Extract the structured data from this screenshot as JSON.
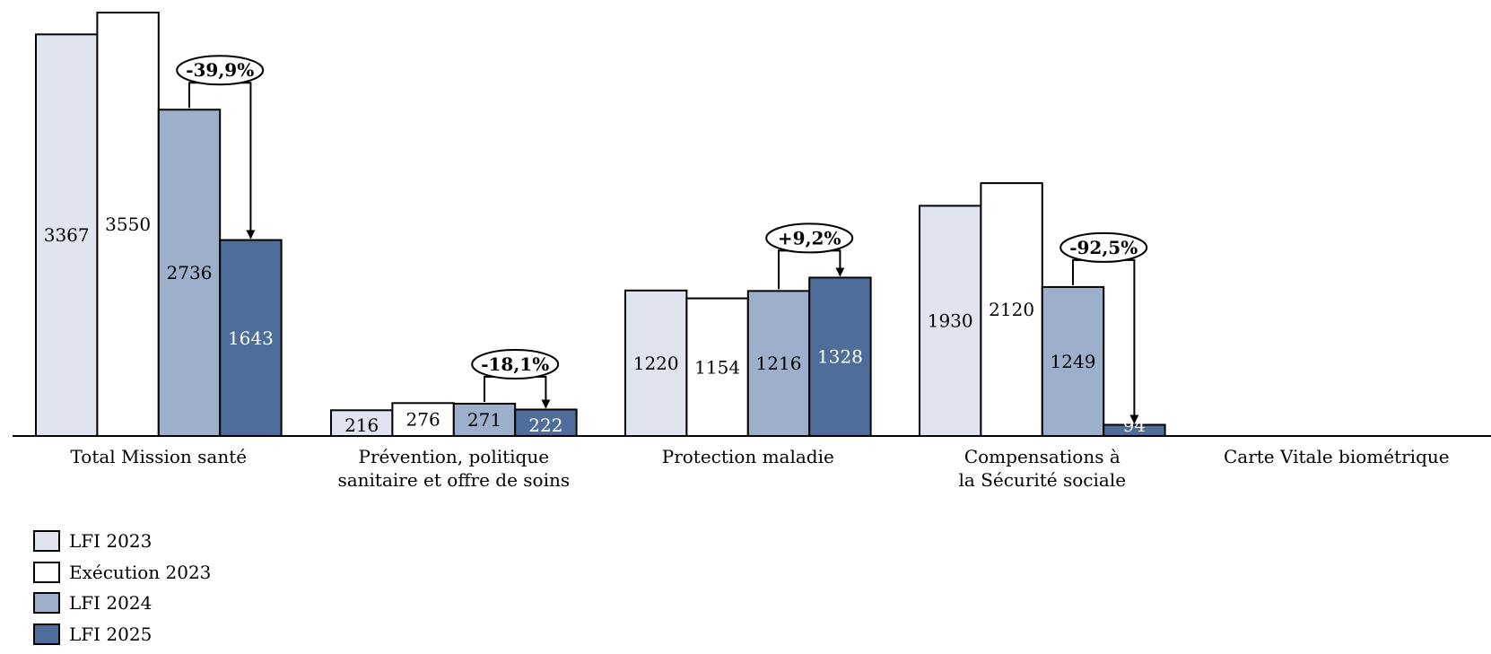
{
  "chart_data": {
    "type": "bar",
    "categories": [
      [
        "Total Mission santé"
      ],
      [
        "Prévention, politique",
        "sanitaire et offre de soins"
      ],
      [
        "Protection maladie"
      ],
      [
        "Compensations à",
        "la Sécurité sociale"
      ],
      [
        "Carte Vitale biométrique"
      ]
    ],
    "series": [
      {
        "name": "LFI 2023",
        "color": "#dfe4ee",
        "label_color": "#000000",
        "values": [
          3367,
          216,
          1220,
          1930,
          null
        ]
      },
      {
        "name": "Exécution 2023",
        "color": "#ffffff",
        "label_color": "#000000",
        "values": [
          3550,
          276,
          1154,
          2120,
          null
        ]
      },
      {
        "name": "LFI 2024",
        "color": "#9eafcb",
        "label_color": "#000000",
        "values": [
          2736,
          271,
          1216,
          1249,
          null
        ]
      },
      {
        "name": "LFI 2025",
        "color": "#4f6d9a",
        "label_color": "#ffffff",
        "values": [
          1643,
          222,
          1328,
          94,
          null
        ]
      }
    ],
    "annotations": [
      {
        "category_index": 0,
        "from_series": 2,
        "to_series": 3,
        "text": "-39,9%"
      },
      {
        "category_index": 1,
        "from_series": 2,
        "to_series": 3,
        "text": "-18,1%"
      },
      {
        "category_index": 2,
        "from_series": 2,
        "to_series": 3,
        "text": "+9,2%"
      },
      {
        "category_index": 3,
        "from_series": 2,
        "to_series": 3,
        "text": "-92,5%"
      }
    ],
    "ylim": [
      0,
      3550
    ],
    "grid": false,
    "legend_position": "bottom-left"
  }
}
